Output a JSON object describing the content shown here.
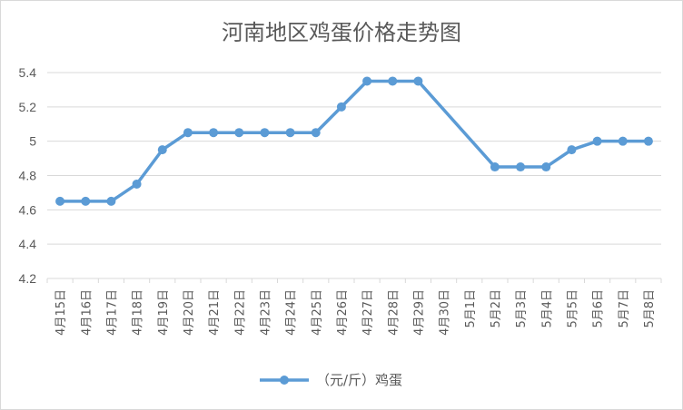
{
  "chart_data": {
    "type": "line",
    "title": "河南地区鸡蛋价格走势图",
    "xlabel": "",
    "ylabel": "",
    "categories": [
      "4月15日",
      "4月16日",
      "4月17日",
      "4月18日",
      "4月19日",
      "4月20日",
      "4月21日",
      "4月22日",
      "4月23日",
      "4月24日",
      "4月25日",
      "4月26日",
      "4月27日",
      "4月28日",
      "4月29日",
      "4月30日",
      "5月1日",
      "5月2日",
      "5月3日",
      "5月4日",
      "5月5日",
      "5月6日",
      "5月7日",
      "5月8日"
    ],
    "series": [
      {
        "name": "（元/斤）鸡蛋",
        "values": [
          4.65,
          4.65,
          4.65,
          4.75,
          4.95,
          5.05,
          5.05,
          5.05,
          5.05,
          5.05,
          5.05,
          5.2,
          5.35,
          5.35,
          5.35,
          null,
          null,
          4.85,
          4.85,
          4.85,
          4.95,
          5.0,
          5.0,
          5.0
        ]
      }
    ],
    "ylim": [
      4.2,
      5.4
    ],
    "yticks": [
      "4.2",
      "4.4",
      "4.6",
      "4.8",
      "5",
      "5.2",
      "5.4"
    ],
    "grid": true,
    "legend": "bottom",
    "line_color": "#5b9bd5",
    "gap_handling": "connect"
  }
}
